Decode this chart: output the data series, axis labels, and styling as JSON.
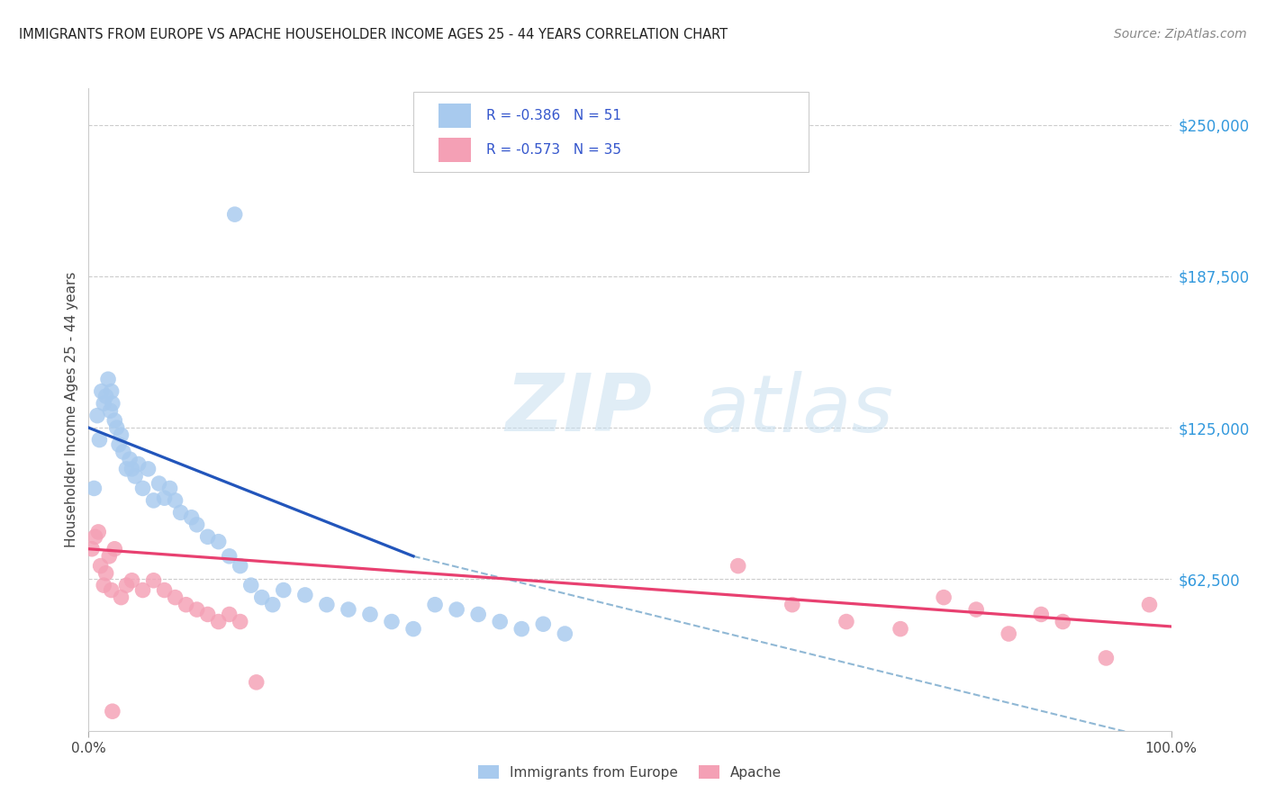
{
  "title": "IMMIGRANTS FROM EUROPE VS APACHE HOUSEHOLDER INCOME AGES 25 - 44 YEARS CORRELATION CHART",
  "source": "Source: ZipAtlas.com",
  "ylabel": "Householder Income Ages 25 - 44 years",
  "legend_label1": "Immigrants from Europe",
  "legend_label2": "Apache",
  "legend_r1": "R = -0.386",
  "legend_n1": "N = 51",
  "legend_r2": "R = -0.573",
  "legend_n2": "N = 35",
  "color_blue": "#A8CAEE",
  "color_pink": "#F4A0B5",
  "color_blue_line": "#2255BB",
  "color_pink_line": "#E84070",
  "color_dashed": "#90B8D5",
  "ytick_values": [
    62500,
    125000,
    187500,
    250000
  ],
  "xlim": [
    0,
    100
  ],
  "ylim": [
    0,
    265000
  ],
  "blue_x": [
    0.5,
    0.8,
    1.0,
    1.2,
    1.4,
    1.6,
    1.8,
    2.0,
    2.1,
    2.2,
    2.4,
    2.6,
    2.8,
    3.0,
    3.2,
    3.5,
    3.8,
    4.0,
    4.3,
    4.6,
    5.0,
    5.5,
    6.0,
    6.5,
    7.0,
    7.5,
    8.0,
    8.5,
    9.5,
    10.0,
    11.0,
    12.0,
    13.0,
    14.0,
    15.0,
    16.0,
    17.0,
    18.0,
    20.0,
    22.0,
    24.0,
    26.0,
    28.0,
    30.0,
    32.0,
    34.0,
    36.0,
    38.0,
    40.0,
    42.0,
    44.0
  ],
  "blue_y": [
    100000,
    130000,
    120000,
    140000,
    135000,
    138000,
    145000,
    132000,
    140000,
    135000,
    128000,
    125000,
    118000,
    122000,
    115000,
    108000,
    112000,
    108000,
    105000,
    110000,
    100000,
    108000,
    95000,
    102000,
    96000,
    100000,
    95000,
    90000,
    88000,
    85000,
    80000,
    78000,
    72000,
    68000,
    60000,
    55000,
    52000,
    58000,
    56000,
    52000,
    50000,
    48000,
    45000,
    42000,
    52000,
    50000,
    48000,
    45000,
    42000,
    44000,
    40000
  ],
  "blue_outlier_x": 13.5,
  "blue_outlier_y": 213000,
  "pink_x": [
    0.3,
    0.6,
    0.9,
    1.1,
    1.4,
    1.6,
    1.9,
    2.1,
    2.4,
    3.0,
    3.5,
    4.0,
    5.0,
    6.0,
    7.0,
    8.0,
    9.0,
    10.0,
    11.0,
    12.0,
    13.0,
    14.0,
    15.5,
    60.0,
    65.0,
    70.0,
    75.0,
    79.0,
    82.0,
    85.0,
    88.0,
    90.0,
    94.0,
    98.0
  ],
  "pink_y": [
    75000,
    80000,
    82000,
    68000,
    60000,
    65000,
    72000,
    58000,
    75000,
    55000,
    60000,
    62000,
    58000,
    62000,
    58000,
    55000,
    52000,
    50000,
    48000,
    45000,
    48000,
    45000,
    20000,
    68000,
    52000,
    45000,
    42000,
    55000,
    50000,
    40000,
    48000,
    45000,
    30000,
    52000
  ],
  "pink_outlier_x": 2.2,
  "pink_outlier_y": 8000,
  "blue_line_x0": 0,
  "blue_line_x1": 30,
  "blue_line_y0": 125000,
  "blue_line_y1": 72000,
  "blue_dash_x0": 30,
  "blue_dash_x1": 100,
  "blue_dash_y0": 72000,
  "blue_dash_y1": -5000,
  "pink_line_x0": 0,
  "pink_line_x1": 100,
  "pink_line_y0": 75000,
  "pink_line_y1": 43000
}
